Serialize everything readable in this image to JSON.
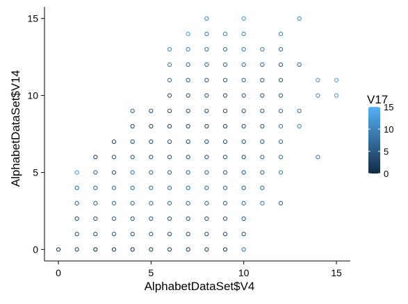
{
  "chart_data": {
    "type": "scatter",
    "xlabel": "AlphabetDataSet$V4",
    "ylabel": "AlphabetDataSet$V14",
    "xlim": [
      -0.75,
      15.75
    ],
    "ylim": [
      -0.75,
      15.75
    ],
    "x_ticks": [
      0,
      5,
      10,
      15
    ],
    "y_ticks": [
      0,
      5,
      10,
      15
    ],
    "grid": false,
    "marker": "open-circle",
    "color_scale": {
      "variable": "V17",
      "low_color": "#132B43",
      "high_color": "#56B1F7",
      "range": [
        0,
        15
      ],
      "ticks": [
        0,
        5,
        10,
        15
      ],
      "legend_position": "right"
    },
    "points": [
      [
        0,
        0,
        2
      ],
      [
        1,
        0,
        3
      ],
      [
        1,
        1,
        5
      ],
      [
        1,
        2,
        4
      ],
      [
        1,
        3,
        6
      ],
      [
        1,
        4,
        7
      ],
      [
        1,
        5,
        12
      ],
      [
        2,
        0,
        1
      ],
      [
        2,
        1,
        4
      ],
      [
        2,
        2,
        5
      ],
      [
        2,
        3,
        6
      ],
      [
        2,
        4,
        7
      ],
      [
        2,
        5,
        6
      ],
      [
        2,
        6,
        3
      ],
      [
        3,
        0,
        2
      ],
      [
        3,
        1,
        5
      ],
      [
        3,
        2,
        6
      ],
      [
        3,
        3,
        7
      ],
      [
        3,
        4,
        8
      ],
      [
        3,
        5,
        4
      ],
      [
        3,
        6,
        5
      ],
      [
        3,
        7,
        3
      ],
      [
        4,
        0,
        1
      ],
      [
        4,
        1,
        4
      ],
      [
        4,
        2,
        5
      ],
      [
        4,
        3,
        6
      ],
      [
        4,
        4,
        7
      ],
      [
        4,
        5,
        8
      ],
      [
        4,
        6,
        5
      ],
      [
        4,
        7,
        4
      ],
      [
        4,
        8,
        3
      ],
      [
        4,
        9,
        6
      ],
      [
        5,
        0,
        2
      ],
      [
        5,
        1,
        5
      ],
      [
        5,
        2,
        6
      ],
      [
        5,
        3,
        7
      ],
      [
        5,
        4,
        8
      ],
      [
        5,
        5,
        6
      ],
      [
        5,
        6,
        5
      ],
      [
        5,
        7,
        4
      ],
      [
        5,
        8,
        3
      ],
      [
        5,
        9,
        4
      ],
      [
        6,
        0,
        3
      ],
      [
        6,
        1,
        4
      ],
      [
        6,
        2,
        5
      ],
      [
        6,
        3,
        7
      ],
      [
        6,
        4,
        8
      ],
      [
        6,
        5,
        6
      ],
      [
        6,
        6,
        5
      ],
      [
        6,
        7,
        4
      ],
      [
        6,
        8,
        3
      ],
      [
        6,
        9,
        4
      ],
      [
        6,
        10,
        5
      ],
      [
        6,
        11,
        7
      ],
      [
        6,
        12,
        9
      ],
      [
        6,
        13,
        11
      ],
      [
        7,
        0,
        2
      ],
      [
        7,
        1,
        4
      ],
      [
        7,
        2,
        5
      ],
      [
        7,
        3,
        6
      ],
      [
        7,
        4,
        7
      ],
      [
        7,
        5,
        6
      ],
      [
        7,
        6,
        5
      ],
      [
        7,
        7,
        4
      ],
      [
        7,
        8,
        3
      ],
      [
        7,
        9,
        4
      ],
      [
        7,
        10,
        5
      ],
      [
        7,
        11,
        6
      ],
      [
        7,
        12,
        8
      ],
      [
        7,
        13,
        10
      ],
      [
        7,
        14,
        12
      ],
      [
        8,
        0,
        3
      ],
      [
        8,
        1,
        4
      ],
      [
        8,
        2,
        5
      ],
      [
        8,
        3,
        6
      ],
      [
        8,
        4,
        7
      ],
      [
        8,
        5,
        6
      ],
      [
        8,
        6,
        5
      ],
      [
        8,
        7,
        4
      ],
      [
        8,
        8,
        3
      ],
      [
        8,
        9,
        4
      ],
      [
        8,
        10,
        5
      ],
      [
        8,
        11,
        6
      ],
      [
        8,
        12,
        7
      ],
      [
        8,
        13,
        8
      ],
      [
        8,
        14,
        9
      ],
      [
        8,
        15,
        11
      ],
      [
        9,
        0,
        2
      ],
      [
        9,
        1,
        4
      ],
      [
        9,
        2,
        5
      ],
      [
        9,
        3,
        6
      ],
      [
        9,
        4,
        7
      ],
      [
        9,
        5,
        6
      ],
      [
        9,
        6,
        5
      ],
      [
        9,
        7,
        4
      ],
      [
        9,
        8,
        3
      ],
      [
        9,
        9,
        4
      ],
      [
        9,
        10,
        5
      ],
      [
        9,
        11,
        6
      ],
      [
        9,
        12,
        7
      ],
      [
        9,
        13,
        8
      ],
      [
        9,
        14,
        9
      ],
      [
        10,
        0,
        8
      ],
      [
        10,
        1,
        5
      ],
      [
        10,
        2,
        6
      ],
      [
        10,
        3,
        7
      ],
      [
        10,
        4,
        6
      ],
      [
        10,
        5,
        5
      ],
      [
        10,
        6,
        4
      ],
      [
        10,
        7,
        5
      ],
      [
        10,
        8,
        4
      ],
      [
        10,
        9,
        5
      ],
      [
        10,
        10,
        6
      ],
      [
        10,
        11,
        7
      ],
      [
        10,
        12,
        8
      ],
      [
        10,
        13,
        9
      ],
      [
        10,
        14,
        10
      ],
      [
        10,
        15,
        12
      ],
      [
        11,
        3,
        8
      ],
      [
        11,
        4,
        7
      ],
      [
        11,
        5,
        6
      ],
      [
        11,
        6,
        7
      ],
      [
        11,
        7,
        6
      ],
      [
        11,
        8,
        5
      ],
      [
        11,
        9,
        6
      ],
      [
        11,
        10,
        5
      ],
      [
        11,
        11,
        6
      ],
      [
        11,
        12,
        7
      ],
      [
        11,
        13,
        9
      ],
      [
        12,
        3,
        6
      ],
      [
        12,
        5,
        9
      ],
      [
        12,
        6,
        8
      ],
      [
        12,
        7,
        7
      ],
      [
        12,
        8,
        9
      ],
      [
        12,
        9,
        7
      ],
      [
        12,
        10,
        6
      ],
      [
        12,
        11,
        5
      ],
      [
        12,
        12,
        6
      ],
      [
        12,
        13,
        8
      ],
      [
        12,
        14,
        10
      ],
      [
        13,
        8,
        10
      ],
      [
        13,
        9,
        8
      ],
      [
        13,
        12,
        7
      ],
      [
        13,
        15,
        11
      ],
      [
        14,
        6,
        9
      ],
      [
        14,
        10,
        11
      ],
      [
        14,
        11,
        12
      ],
      [
        15,
        10,
        12
      ],
      [
        15,
        11,
        13
      ]
    ]
  }
}
